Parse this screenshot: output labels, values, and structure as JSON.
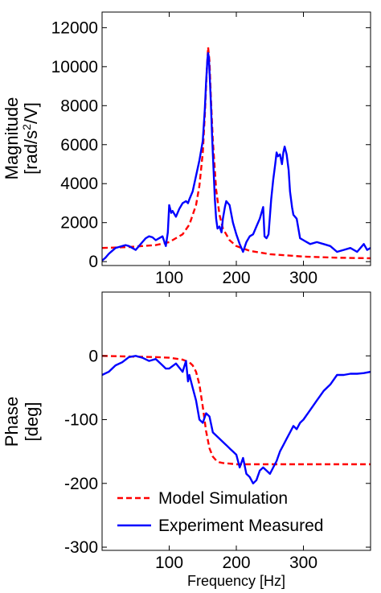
{
  "chart_data": [
    {
      "type": "line",
      "ylabel_line1": "Magnitude",
      "ylabel_line2_base": "[rad/s",
      "ylabel_line2_sup": "2",
      "ylabel_line2_tail": "/V]",
      "xlim": [
        0,
        400
      ],
      "ylim": [
        -200,
        12800
      ],
      "xticks": [
        100,
        200,
        300
      ],
      "yticks": [
        0,
        2000,
        4000,
        6000,
        8000,
        10000,
        12000
      ],
      "series": [
        {
          "name": "Model Simulation",
          "color": "#ff0000",
          "dash": true,
          "x": [
            0,
            40,
            80,
            100,
            120,
            130,
            140,
            145,
            150,
            153,
            156,
            158,
            160,
            162,
            165,
            170,
            175,
            180,
            190,
            200,
            220,
            250,
            300,
            350,
            400
          ],
          "y": [
            700,
            750,
            850,
            1000,
            1400,
            1900,
            2900,
            3900,
            5600,
            7500,
            9800,
            11000,
            10300,
            8500,
            6200,
            3700,
            2400,
            1700,
            1100,
            800,
            550,
            380,
            260,
            200,
            170
          ]
        },
        {
          "name": "Experiment Measured",
          "color": "#0000ff",
          "dash": false,
          "x": [
            0,
            5,
            10,
            15,
            20,
            25,
            30,
            35,
            40,
            45,
            50,
            55,
            60,
            65,
            70,
            75,
            80,
            85,
            90,
            95,
            98,
            100,
            103,
            105,
            110,
            115,
            120,
            125,
            128,
            130,
            135,
            140,
            145,
            150,
            153,
            155,
            157,
            158,
            159,
            160,
            162,
            164,
            166,
            168,
            170,
            172,
            175,
            178,
            180,
            183,
            185,
            190,
            195,
            200,
            205,
            210,
            215,
            220,
            225,
            230,
            235,
            240,
            242,
            245,
            248,
            252,
            255,
            258,
            260,
            262,
            265,
            268,
            270,
            272,
            275,
            278,
            280,
            283,
            285,
            290,
            295,
            300,
            305,
            310,
            320,
            330,
            340,
            350,
            360,
            370,
            380,
            390,
            395,
            400
          ],
          "y": [
            50,
            200,
            400,
            550,
            700,
            750,
            800,
            850,
            800,
            700,
            600,
            800,
            1000,
            1200,
            1300,
            1250,
            1100,
            1200,
            1300,
            800,
            1500,
            2900,
            2500,
            2600,
            2300,
            2700,
            3000,
            3100,
            3000,
            3200,
            3600,
            4400,
            5200,
            6200,
            7800,
            9200,
            10400,
            10700,
            10500,
            9800,
            8200,
            6400,
            4800,
            3200,
            2200,
            1700,
            1800,
            1500,
            2200,
            2800,
            3100,
            2900,
            2000,
            1400,
            900,
            500,
            1000,
            1300,
            1400,
            1800,
            2200,
            2800,
            1300,
            1200,
            1400,
            3200,
            4200,
            5000,
            5600,
            5400,
            5500,
            5000,
            5600,
            5900,
            5500,
            4700,
            3600,
            2800,
            2400,
            2200,
            1200,
            1100,
            1000,
            900,
            1000,
            900,
            800,
            500,
            600,
            700,
            500,
            900,
            600,
            700
          ]
        }
      ]
    },
    {
      "type": "line",
      "ylabel_line1": "Phase",
      "ylabel_line2": "[deg]",
      "xlabel": "Frequency [Hz]",
      "xlim": [
        0,
        400
      ],
      "ylim": [
        -305,
        100
      ],
      "xticks": [
        100,
        200,
        300
      ],
      "yticks": [
        -300,
        -200,
        -100,
        0
      ],
      "series": [
        {
          "name": "Model Simulation",
          "color": "#ff0000",
          "dash": true,
          "x": [
            0,
            40,
            80,
            100,
            120,
            130,
            135,
            140,
            145,
            150,
            155,
            160,
            165,
            170,
            175,
            180,
            190,
            200,
            220,
            250,
            300,
            350,
            400
          ],
          "y": [
            0,
            -1,
            -2,
            -3,
            -6,
            -10,
            -15,
            -25,
            -45,
            -80,
            -118,
            -145,
            -158,
            -164,
            -167,
            -168,
            -169,
            -170,
            -170,
            -170,
            -170,
            -170,
            -170
          ]
        },
        {
          "name": "Experiment Measured",
          "color": "#0000ff",
          "dash": false,
          "x": [
            0,
            10,
            20,
            30,
            40,
            50,
            60,
            70,
            80,
            90,
            95,
            100,
            110,
            120,
            125,
            128,
            130,
            135,
            140,
            145,
            150,
            155,
            160,
            165,
            170,
            175,
            180,
            185,
            190,
            195,
            200,
            205,
            210,
            215,
            220,
            225,
            230,
            235,
            240,
            245,
            250,
            255,
            260,
            265,
            270,
            275,
            280,
            285,
            290,
            295,
            300,
            310,
            320,
            330,
            340,
            350,
            360,
            370,
            380,
            390,
            400
          ],
          "y": [
            -30,
            -25,
            -15,
            -10,
            -2,
            0,
            -3,
            -8,
            -5,
            -15,
            -20,
            -20,
            -12,
            -25,
            -8,
            -40,
            -30,
            -50,
            -70,
            -100,
            -105,
            -90,
            -95,
            -120,
            -125,
            -130,
            -135,
            -140,
            -145,
            -150,
            -155,
            -175,
            -160,
            -185,
            -190,
            -200,
            -195,
            -180,
            -175,
            -180,
            -185,
            -175,
            -165,
            -150,
            -140,
            -130,
            -120,
            -110,
            -115,
            -105,
            -100,
            -85,
            -70,
            -55,
            -45,
            -30,
            -30,
            -28,
            -28,
            -27,
            -25
          ]
        }
      ]
    }
  ],
  "legend": [
    {
      "label": "Model Simulation",
      "color": "#ff0000",
      "dash": true
    },
    {
      "label": "Experiment Measured",
      "color": "#0000ff",
      "dash": false
    }
  ]
}
